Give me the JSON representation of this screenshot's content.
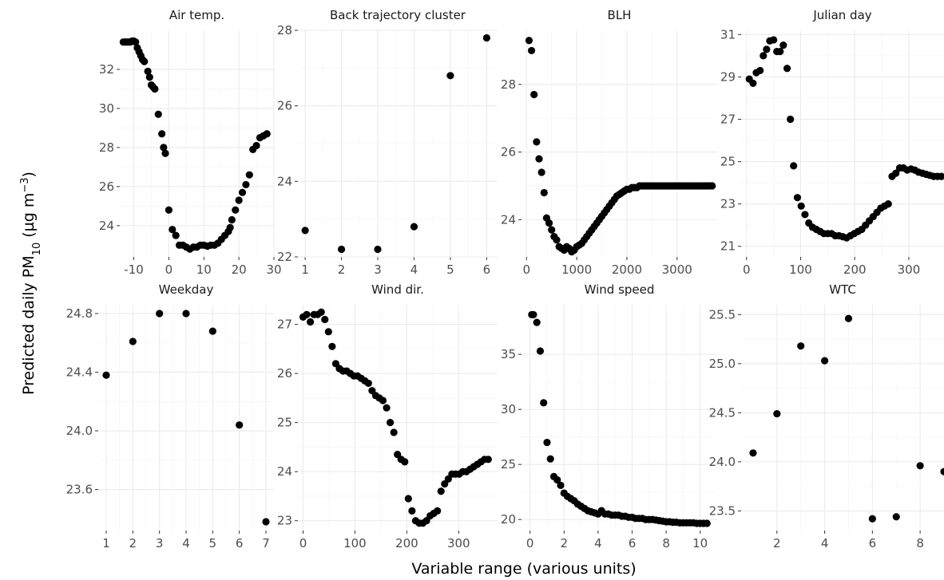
{
  "figure": {
    "ylabel_prefix": "Predicted daily PM",
    "ylabel_sub": "10",
    "ylabel_unit_open": " (µg m",
    "ylabel_sup": "−3",
    "ylabel_unit_close": ")",
    "xlabel": "Variable range (various units)"
  },
  "chart_data": [
    {
      "type": "scatter",
      "title": "Air temp.",
      "xlim": [
        -14,
        30
      ],
      "ylim": [
        22.4,
        34.0
      ],
      "xticks": [
        -10,
        0,
        10,
        20,
        30
      ],
      "xtick_labels": [
        "-10",
        "0",
        "10",
        "20",
        "30"
      ],
      "yticks": [
        24,
        26,
        28,
        30,
        32
      ],
      "ytick_labels": [
        "24",
        "26",
        "28",
        "30",
        "32"
      ],
      "x": [
        -13,
        -12.5,
        -12,
        -11.5,
        -11,
        -10.5,
        -10,
        -9.5,
        -9,
        -8.5,
        -8,
        -7.5,
        -7,
        -6,
        -5.5,
        -5,
        -4.5,
        -4,
        -3,
        -2,
        -1.5,
        -1,
        0,
        1,
        2,
        3,
        4,
        5,
        6,
        7,
        8,
        9,
        10,
        11,
        12,
        13,
        14,
        15,
        16,
        17,
        17.5,
        18,
        19,
        20,
        21,
        22,
        23,
        24,
        25,
        26,
        27,
        28
      ],
      "y": [
        33.4,
        33.4,
        33.4,
        33.4,
        33.4,
        33.45,
        33.45,
        33.4,
        33.1,
        32.9,
        32.7,
        32.5,
        32.4,
        31.9,
        31.6,
        31.2,
        31.1,
        31.0,
        29.7,
        28.7,
        28.0,
        27.7,
        24.8,
        23.8,
        23.5,
        23.0,
        23.0,
        22.9,
        22.8,
        22.9,
        22.9,
        23.0,
        23.0,
        22.95,
        23.0,
        23.0,
        23.1,
        23.3,
        23.5,
        23.7,
        23.9,
        24.3,
        24.8,
        25.3,
        25.7,
        26.1,
        26.6,
        27.9,
        28.1,
        28.5,
        28.6,
        28.7
      ]
    },
    {
      "type": "scatter",
      "title": "Back trajectory cluster",
      "xlim": [
        0.8,
        6.3
      ],
      "ylim": [
        22.0,
        28.0
      ],
      "xticks": [
        1,
        2,
        3,
        4,
        5,
        6
      ],
      "xtick_labels": [
        "1",
        "2",
        "3",
        "4",
        "5",
        "6"
      ],
      "yticks": [
        22,
        24,
        26,
        28
      ],
      "ytick_labels": [
        "22",
        "24",
        "26",
        "28"
      ],
      "x": [
        1,
        2,
        3,
        4,
        5,
        6
      ],
      "y": [
        22.7,
        22.2,
        22.2,
        22.8,
        26.8,
        27.8
      ]
    },
    {
      "type": "scatter",
      "title": "BLH",
      "xlim": [
        -100,
        3800
      ],
      "ylim": [
        22.9,
        29.6
      ],
      "xticks": [
        0,
        1000,
        2000,
        3000
      ],
      "xtick_labels": [
        "0",
        "1000",
        "2000",
        "3000"
      ],
      "yticks": [
        24,
        26,
        28
      ],
      "ytick_labels": [
        "24",
        "26",
        "28"
      ],
      "x": [
        50,
        100,
        150,
        200,
        250,
        300,
        350,
        400,
        450,
        500,
        550,
        600,
        650,
        700,
        750,
        800,
        850,
        900,
        950,
        1000,
        1050,
        1100,
        1150,
        1200,
        1250,
        1300,
        1350,
        1400,
        1450,
        1500,
        1550,
        1600,
        1650,
        1700,
        1750,
        1800,
        1850,
        1900,
        1950,
        2000,
        2050,
        2100,
        2150,
        2200,
        2250,
        2300,
        2350,
        2400,
        2450,
        2500,
        2550,
        2600,
        2650,
        2700,
        2750,
        2800,
        2850,
        2900,
        2950,
        3000,
        3050,
        3100,
        3150,
        3200,
        3250,
        3300,
        3350,
        3400,
        3450,
        3500,
        3550,
        3600,
        3650,
        3700
      ],
      "y": [
        29.3,
        29.0,
        27.7,
        26.3,
        25.8,
        25.4,
        24.8,
        24.05,
        23.9,
        23.7,
        23.5,
        23.4,
        23.2,
        23.15,
        23.1,
        23.2,
        23.15,
        23.05,
        23.1,
        23.2,
        23.25,
        23.3,
        23.4,
        23.5,
        23.6,
        23.7,
        23.8,
        23.9,
        24.0,
        24.1,
        24.2,
        24.3,
        24.4,
        24.5,
        24.6,
        24.7,
        24.75,
        24.8,
        24.85,
        24.9,
        24.9,
        24.95,
        24.95,
        24.95,
        25.0,
        25.0,
        25.0,
        25.0,
        25.0,
        25.0,
        25.0,
        25.0,
        25.0,
        25.0,
        25.0,
        25.0,
        25.0,
        25.0,
        25.0,
        25.0,
        25.0,
        25.0,
        25.0,
        25.0,
        25.0,
        25.0,
        25.0,
        25.0,
        25.0,
        25.0,
        25.0,
        25.0,
        25.0,
        25.0
      ]
    },
    {
      "type": "scatter",
      "title": "Julian day",
      "xlim": [
        -10,
        365
      ],
      "ylim": [
        20.5,
        31.2
      ],
      "xticks": [
        0,
        100,
        200,
        300
      ],
      "xtick_labels": [
        "0",
        "100",
        "200",
        "300"
      ],
      "yticks": [
        21,
        23,
        25,
        27,
        29,
        31
      ],
      "ytick_labels": [
        "21",
        "23",
        "25",
        "27",
        "29",
        "31"
      ],
      "x": [
        5,
        12,
        18,
        25,
        31,
        37,
        43,
        50,
        56,
        62,
        68,
        75,
        81,
        87,
        94,
        101,
        108,
        115,
        122,
        129,
        136,
        143,
        150,
        157,
        164,
        171,
        178,
        185,
        192,
        199,
        206,
        213,
        220,
        227,
        234,
        241,
        248,
        255,
        262,
        269,
        276,
        283,
        290,
        297,
        304,
        311,
        318,
        325,
        332,
        339,
        346,
        353,
        360
      ],
      "y": [
        28.9,
        28.7,
        29.2,
        29.3,
        30.0,
        30.3,
        30.7,
        30.75,
        30.2,
        30.2,
        30.5,
        29.4,
        27.0,
        24.8,
        23.3,
        22.9,
        22.5,
        22.1,
        21.9,
        21.8,
        21.7,
        21.6,
        21.6,
        21.6,
        21.5,
        21.5,
        21.45,
        21.4,
        21.5,
        21.6,
        21.7,
        21.8,
        22.0,
        22.2,
        22.4,
        22.6,
        22.8,
        22.9,
        23.0,
        24.3,
        24.45,
        24.7,
        24.7,
        24.6,
        24.65,
        24.6,
        24.5,
        24.45,
        24.4,
        24.35,
        24.3,
        24.3,
        24.3
      ]
    },
    {
      "type": "scatter",
      "title": "Weekday",
      "xlim": [
        0.7,
        7.3
      ],
      "ylim": [
        23.32,
        24.86
      ],
      "xticks": [
        1,
        2,
        3,
        4,
        5,
        6,
        7
      ],
      "xtick_labels": [
        "1",
        "2",
        "3",
        "4",
        "5",
        "6",
        "7"
      ],
      "yticks": [
        23.6,
        24.0,
        24.4,
        24.8
      ],
      "ytick_labels": [
        "23.6",
        "24.0",
        "24.4",
        "24.8"
      ],
      "x": [
        1,
        2,
        3,
        4,
        5,
        6,
        7
      ],
      "y": [
        24.38,
        24.61,
        24.8,
        24.8,
        24.68,
        24.04,
        23.38
      ]
    },
    {
      "type": "scatter",
      "title": "Wind dir.",
      "xlim": [
        -10,
        375
      ],
      "ylim": [
        22.8,
        27.4
      ],
      "xticks": [
        0,
        100,
        200,
        300
      ],
      "xtick_labels": [
        "0",
        "100",
        "200",
        "300"
      ],
      "yticks": [
        23,
        24,
        25,
        26,
        27
      ],
      "ytick_labels": [
        "23",
        "24",
        "25",
        "26",
        "27"
      ],
      "x": [
        0,
        7,
        14,
        21,
        28,
        35,
        42,
        49,
        56,
        63,
        70,
        77,
        84,
        91,
        98,
        105,
        112,
        119,
        126,
        133,
        140,
        147,
        154,
        161,
        168,
        175,
        182,
        189,
        196,
        203,
        210,
        217,
        224,
        231,
        238,
        245,
        252,
        259,
        266,
        273,
        280,
        287,
        294,
        301,
        308,
        315,
        322,
        329,
        336,
        343,
        350,
        357
      ],
      "y": [
        27.15,
        27.2,
        27.05,
        27.2,
        27.2,
        27.25,
        27.1,
        26.85,
        26.55,
        26.2,
        26.1,
        26.05,
        26.05,
        26.0,
        25.95,
        25.95,
        25.9,
        25.85,
        25.8,
        25.65,
        25.55,
        25.5,
        25.45,
        25.3,
        25.0,
        24.8,
        24.35,
        24.25,
        24.2,
        23.45,
        23.2,
        23.0,
        22.95,
        22.95,
        23.0,
        23.1,
        23.15,
        23.2,
        23.6,
        23.75,
        23.85,
        23.95,
        23.95,
        23.95,
        24.0,
        24.0,
        24.05,
        24.1,
        24.15,
        24.2,
        24.25,
        24.25
      ]
    },
    {
      "type": "scatter",
      "title": "Wind speed",
      "xlim": [
        -0.5,
        11.0
      ],
      "ylim": [
        19.0,
        39.5
      ],
      "xticks": [
        0,
        2,
        4,
        6,
        8,
        10
      ],
      "xtick_labels": [
        "0",
        "2",
        "4",
        "6",
        "8",
        "10"
      ],
      "yticks": [
        20,
        25,
        30,
        35
      ],
      "ytick_labels": [
        "20",
        "25",
        "30",
        "35"
      ],
      "x": [
        0.1,
        0.2,
        0.4,
        0.6,
        0.8,
        1.0,
        1.2,
        1.4,
        1.6,
        1.8,
        2.0,
        2.2,
        2.4,
        2.6,
        2.8,
        3.0,
        3.2,
        3.4,
        3.6,
        3.8,
        4.0,
        4.2,
        4.4,
        4.6,
        4.8,
        5.0,
        5.2,
        5.4,
        5.6,
        5.8,
        6.0,
        6.2,
        6.4,
        6.6,
        6.8,
        7.0,
        7.2,
        7.4,
        7.6,
        7.8,
        8.0,
        8.2,
        8.4,
        8.6,
        8.8,
        9.0,
        9.2,
        9.4,
        9.6,
        9.8,
        10.0,
        10.2,
        10.4
      ],
      "y": [
        38.6,
        38.6,
        37.9,
        35.3,
        30.6,
        27.0,
        25.5,
        23.9,
        23.6,
        23.1,
        22.4,
        22.1,
        21.9,
        21.7,
        21.4,
        21.2,
        21.0,
        20.8,
        20.7,
        20.6,
        20.5,
        20.8,
        20.5,
        20.5,
        20.4,
        20.4,
        20.4,
        20.3,
        20.3,
        20.2,
        20.2,
        20.1,
        20.1,
        20.1,
        20.0,
        20.0,
        20.0,
        19.95,
        19.9,
        19.85,
        19.8,
        19.8,
        19.75,
        19.75,
        19.7,
        19.7,
        19.7,
        19.7,
        19.7,
        19.65,
        19.65,
        19.65,
        19.65
      ]
    },
    {
      "type": "scatter",
      "title": "WTC",
      "xlim": [
        0.5,
        9.0
      ],
      "ylim": [
        23.3,
        25.6
      ],
      "xticks": [
        2,
        4,
        6,
        8
      ],
      "xtick_labels": [
        "2",
        "4",
        "6",
        "8"
      ],
      "yticks": [
        23.5,
        24.0,
        24.5,
        25.0,
        25.5
      ],
      "ytick_labels": [
        "23.5",
        "24.0",
        "24.5",
        "25.0",
        "25.5"
      ],
      "x": [
        1,
        2,
        3,
        4,
        5,
        6,
        7,
        8,
        9
      ],
      "y": [
        24.09,
        24.49,
        25.18,
        25.03,
        25.46,
        23.42,
        23.44,
        23.96,
        23.9
      ]
    }
  ]
}
